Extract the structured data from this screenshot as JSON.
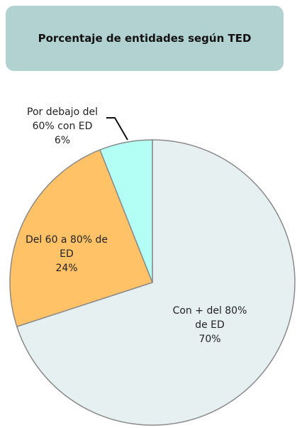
{
  "chart_data": {
    "type": "pie",
    "title": "Porcentaje de entidades según TED",
    "categories": [
      "Con + del 80% de ED",
      "Del 60 a 80% de ED",
      "Por debajo del 60% con ED"
    ],
    "values": [
      70,
      24,
      6
    ],
    "value_labels": [
      "70%",
      "24%",
      "6%"
    ],
    "colors": [
      "#e6f0f0",
      "#ffc266",
      "#b3fff5"
    ]
  }
}
